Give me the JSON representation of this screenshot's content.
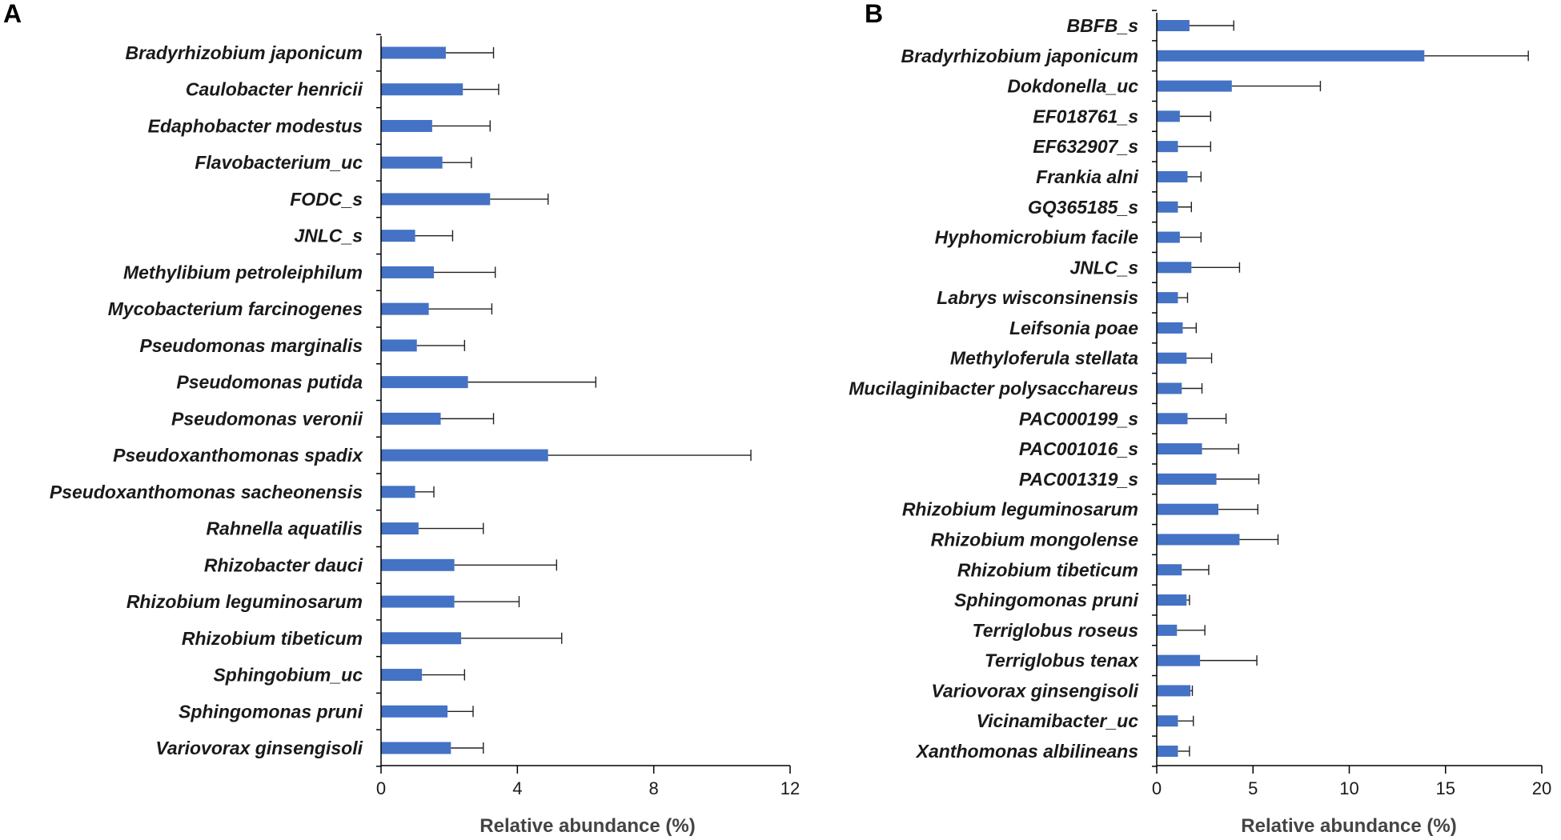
{
  "chart_data": [
    {
      "type": "bar",
      "orientation": "horizontal",
      "panel": "A",
      "xlabel": "Relative abundance (%)",
      "xlim": [
        0,
        12
      ],
      "xticks": [
        0,
        4,
        8,
        12
      ],
      "bar_color": "#4472c4",
      "categories": [
        "Bradyrhizobium japonicum",
        "Caulobacter henricii",
        "Edaphobacter modestus",
        "Flavobacterium_uc",
        "FODC_s",
        "JNLC_s",
        "Methylibium petroleiphilum",
        "Mycobacterium farcinogenes",
        "Pseudomonas marginalis",
        "Pseudomonas putida",
        "Pseudomonas veronii",
        "Pseudoxanthomonas spadix",
        "Pseudoxanthomonas sacheonensis",
        "Rahnella aquatilis",
        "Rhizobacter dauci",
        "Rhizobium leguminosarum",
        "Rhizobium tibeticum",
        "Sphingobium_uc",
        "Sphingomonas pruni",
        "Variovorax ginsengisoli"
      ],
      "values": [
        1.9,
        2.4,
        1.5,
        1.8,
        3.2,
        1.0,
        1.55,
        1.4,
        1.05,
        2.55,
        1.75,
        4.9,
        1.0,
        1.1,
        2.15,
        2.15,
        2.35,
        1.2,
        1.95,
        2.05
      ],
      "errors": [
        1.4,
        1.05,
        1.7,
        0.85,
        1.7,
        1.1,
        1.8,
        1.85,
        1.4,
        3.75,
        1.55,
        5.95,
        0.55,
        1.9,
        3.0,
        1.9,
        2.95,
        1.25,
        0.75,
        0.95
      ]
    },
    {
      "type": "bar",
      "orientation": "horizontal",
      "panel": "B",
      "xlabel": "Relative abundance (%)",
      "xlim": [
        0,
        20
      ],
      "xticks": [
        0,
        5,
        10,
        15,
        20
      ],
      "bar_color": "#4472c4",
      "categories": [
        "BBFB_s",
        "Bradyrhizobium japonicum",
        "Dokdonella_uc",
        "EF018761_s",
        "EF632907_s",
        "Frankia alni",
        "GQ365185_s",
        "Hyphomicrobium facile",
        "JNLC_s",
        "Labrys wisconsinensis",
        "Leifsonia poae",
        "Methyloferula stellata",
        "Mucilaginibacter polysacchareus",
        "PAC000199_s",
        "PAC001016_s",
        "PAC001319_s",
        "Rhizobium leguminosarum",
        "Rhizobium mongolense",
        "Rhizobium tibeticum",
        "Sphingomonas pruni",
        "Terriglobus roseus",
        "Terriglobus tenax",
        "Variovorax ginsengisoli",
        "Vicinamibacter_uc",
        "Xanthomonas albilineans"
      ],
      "values": [
        1.7,
        13.9,
        3.9,
        1.2,
        1.1,
        1.6,
        1.1,
        1.2,
        1.8,
        1.1,
        1.35,
        1.55,
        1.3,
        1.6,
        2.35,
        3.1,
        3.2,
        4.3,
        1.3,
        1.55,
        1.05,
        2.25,
        1.75,
        1.1,
        1.1
      ],
      "errors": [
        2.3,
        5.4,
        4.6,
        1.6,
        1.7,
        0.7,
        0.7,
        1.1,
        2.5,
        0.5,
        0.7,
        1.3,
        1.05,
        2.0,
        1.9,
        2.2,
        2.05,
        2.0,
        1.4,
        0.15,
        1.45,
        2.95,
        0.1,
        0.8,
        0.6
      ]
    }
  ]
}
